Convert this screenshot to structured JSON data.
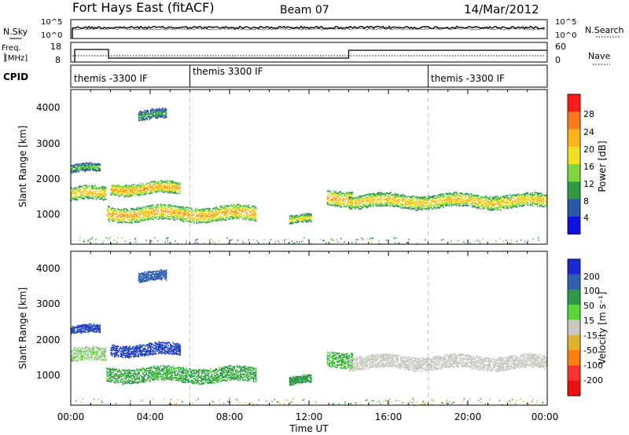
{
  "header": {
    "title": "Fort Hays East (fitACF)",
    "beam": "Beam 07",
    "date": "14/Mar/2012"
  },
  "top_panels": {
    "nsky_label": "N.Sky",
    "nsearch_label": "N.Search",
    "noise_ticks": [
      "10^5",
      "10^0"
    ],
    "freq_label_1": "Freq.",
    "freq_label_2": "[MHz]",
    "freq_ticks": [
      "18",
      "8"
    ],
    "nave_label": "Nave",
    "nave_ticks": [
      "60",
      "0"
    ],
    "cpid_label": "CPID",
    "cpid_segments": [
      {
        "label": "themis -3300 IF",
        "start_hour": 0,
        "end_hour": 6
      },
      {
        "label": "themis 3300 IF",
        "start_hour": 6,
        "end_hour": 18
      },
      {
        "label": "themis -3300 IF",
        "start_hour": 18,
        "end_hour": 24
      }
    ],
    "freq_steps": [
      {
        "start_hour": 0.2,
        "end_hour": 1.9,
        "mhz": 16
      },
      {
        "start_hour": 1.9,
        "end_hour": 14.0,
        "mhz": 10.5
      },
      {
        "start_hour": 14.0,
        "end_hour": 24,
        "mhz": 15.5
      }
    ]
  },
  "power_panel": {
    "ylabel": "Slant Range [km]",
    "yticks": [
      "4000",
      "3000",
      "2000",
      "1000"
    ],
    "colorbar_label": "Power [dB]",
    "colorbar_ticks": [
      "28",
      "24",
      "20",
      "16",
      "12",
      "8",
      "4"
    ],
    "colors": [
      "#ff1a1a",
      "#ff7a1a",
      "#ffb31a",
      "#f0e020",
      "#7fd640",
      "#2e9a4a",
      "#285aa8",
      "#1010e0"
    ]
  },
  "velocity_panel": {
    "ylabel": "Slant Range [km]",
    "yticks": [
      "4000",
      "3000",
      "2000",
      "1000"
    ],
    "colorbar_label": "Velocity [m s⁻¹]",
    "colorbar_ticks": [
      "200",
      "100",
      "50",
      "15",
      "-15",
      "-50",
      "-100",
      "-200"
    ],
    "colors": [
      "#1a2ad0",
      "#2e5fb0",
      "#2e9a4a",
      "#5ad63a",
      "#c8c8c0",
      "#e0b030",
      "#ff8010",
      "#ff3030",
      "#ee1010"
    ]
  },
  "xaxis": {
    "label": "Time UT",
    "ticks": [
      "00:00",
      "04:00",
      "08:00",
      "12:00",
      "16:00",
      "20:00",
      "00:00"
    ]
  },
  "chart_data": {
    "type": "heatmap",
    "title": "Fort Hays East (fitACF)",
    "xlabel": "Time UT",
    "ylabel": "Slant Range [km]",
    "xlim_hours": [
      0,
      24
    ],
    "ylim_km": [
      180,
      4500
    ],
    "series": [
      {
        "name": "Power [dB]",
        "zlim": [
          0,
          30
        ]
      },
      {
        "name": "Velocity [m s⁻¹]",
        "zlim": [
          -200,
          200
        ]
      }
    ],
    "scatter_bands": [
      {
        "start_hour": 0.0,
        "end_hour": 1.8,
        "center_km": 1600,
        "width_km": 350,
        "power_db": 20,
        "velocity": 15
      },
      {
        "start_hour": 0.0,
        "end_hour": 1.5,
        "center_km": 2300,
        "width_km": 200,
        "power_db": 12,
        "velocity": 150
      },
      {
        "start_hour": 2.0,
        "end_hour": 5.5,
        "center_km": 1750,
        "width_km": 300,
        "power_db": 22,
        "velocity": 150
      },
      {
        "start_hour": 1.8,
        "end_hour": 9.3,
        "center_km": 1050,
        "width_km": 380,
        "power_db": 22,
        "velocity": 40
      },
      {
        "start_hour": 3.4,
        "end_hour": 4.8,
        "center_km": 3800,
        "width_km": 250,
        "power_db": 10,
        "velocity": 100
      },
      {
        "start_hour": 11.0,
        "end_hour": 12.1,
        "center_km": 880,
        "width_km": 200,
        "power_db": 18,
        "velocity": 60
      },
      {
        "start_hour": 12.9,
        "end_hour": 14.2,
        "center_km": 1500,
        "width_km": 400,
        "power_db": 22,
        "velocity": 30
      },
      {
        "start_hour": 14.0,
        "end_hour": 24.0,
        "center_km": 1400,
        "width_km": 350,
        "power_db": 20,
        "velocity": 0
      }
    ]
  }
}
